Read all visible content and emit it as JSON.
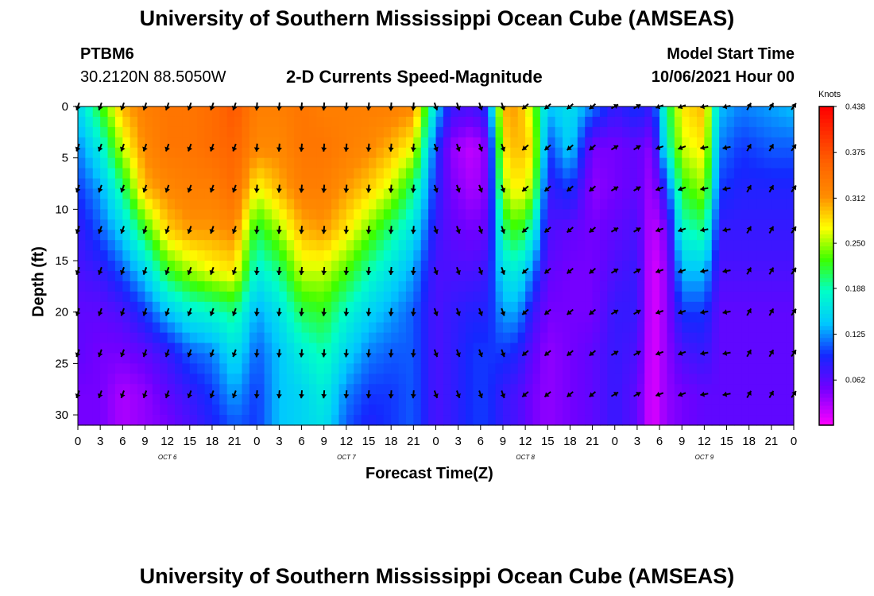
{
  "header": {
    "title": "University of Southern Mississippi Ocean Cube (AMSEAS)",
    "station": "PTBM6",
    "coords": "30.2120N  88.5050W",
    "subtitle": "2-D Currents Speed-Magnitude",
    "model_start_label": "Model Start Time",
    "model_start_value": "10/06/2021 Hour 00"
  },
  "footer": {
    "title": "University of Southern Mississippi Ocean Cube (AMSEAS)"
  },
  "chart_data": {
    "type": "heatmap",
    "ylabel": "Depth (ft)",
    "xlabel": "Forecast Time(Z)",
    "yticks": [
      0,
      5,
      10,
      15,
      20,
      25,
      30
    ],
    "ylim": [
      0,
      31
    ],
    "xlim": [
      0,
      96
    ],
    "xtick_step_hours": 3,
    "xtick_labels": [
      "0",
      "3",
      "6",
      "9",
      "12",
      "15",
      "18",
      "21",
      "0",
      "3",
      "6",
      "9",
      "12",
      "15",
      "18",
      "21",
      "0",
      "3",
      "6",
      "9",
      "12",
      "15",
      "18",
      "21",
      "0",
      "3",
      "6",
      "9",
      "12",
      "15",
      "18",
      "21",
      "0"
    ],
    "day_labels": [
      {
        "label": "OCT 6",
        "hour": 12
      },
      {
        "label": "OCT 7",
        "hour": 36
      },
      {
        "label": "OCT 8",
        "hour": 60
      },
      {
        "label": "OCT 9",
        "hour": 84
      }
    ],
    "colorbar": {
      "units": "Knots",
      "min": 0,
      "max": 0.438,
      "tick_labels": [
        "0.438",
        "0.375",
        "0.312",
        "0.250",
        "0.188",
        "0.125",
        "0.062"
      ],
      "tick_values": [
        0.438,
        0.375,
        0.312,
        0.25,
        0.188,
        0.125,
        0.062
      ]
    },
    "depths_ft": [
      0,
      4,
      8,
      12,
      16,
      20,
      24,
      28,
      31
    ],
    "speed_profiles": [
      {
        "hour": 0,
        "speed": [
          0.15,
          0.12,
          0.1,
          0.08,
          0.07,
          0.06,
          0.06,
          0.05,
          0.05
        ]
      },
      {
        "hour": 3,
        "speed": [
          0.22,
          0.17,
          0.13,
          0.11,
          0.08,
          0.06,
          0.05,
          0.05,
          0.05
        ]
      },
      {
        "hour": 6,
        "speed": [
          0.3,
          0.26,
          0.2,
          0.15,
          0.11,
          0.07,
          0.05,
          0.03,
          0.03
        ]
      },
      {
        "hour": 9,
        "speed": [
          0.33,
          0.32,
          0.3,
          0.22,
          0.15,
          0.1,
          0.06,
          0.04,
          0.04
        ]
      },
      {
        "hour": 12,
        "speed": [
          0.34,
          0.34,
          0.32,
          0.29,
          0.22,
          0.14,
          0.08,
          0.06,
          0.05
        ]
      },
      {
        "hour": 15,
        "speed": [
          0.34,
          0.34,
          0.33,
          0.31,
          0.25,
          0.17,
          0.11,
          0.08,
          0.07
        ]
      },
      {
        "hour": 18,
        "speed": [
          0.35,
          0.35,
          0.33,
          0.31,
          0.27,
          0.18,
          0.12,
          0.1,
          0.09
        ]
      },
      {
        "hour": 21,
        "speed": [
          0.37,
          0.36,
          0.35,
          0.32,
          0.28,
          0.2,
          0.16,
          0.13,
          0.11
        ]
      },
      {
        "hour": 24,
        "speed": [
          0.33,
          0.32,
          0.27,
          0.21,
          0.17,
          0.13,
          0.11,
          0.1,
          0.1
        ]
      },
      {
        "hour": 27,
        "speed": [
          0.33,
          0.32,
          0.3,
          0.25,
          0.2,
          0.16,
          0.14,
          0.14,
          0.14
        ]
      },
      {
        "hour": 30,
        "speed": [
          0.34,
          0.34,
          0.33,
          0.3,
          0.26,
          0.21,
          0.17,
          0.15,
          0.15
        ]
      },
      {
        "hour": 33,
        "speed": [
          0.33,
          0.34,
          0.33,
          0.31,
          0.26,
          0.22,
          0.19,
          0.17,
          0.16
        ]
      },
      {
        "hour": 36,
        "speed": [
          0.33,
          0.33,
          0.31,
          0.28,
          0.23,
          0.18,
          0.15,
          0.12,
          0.11
        ]
      },
      {
        "hour": 39,
        "speed": [
          0.33,
          0.32,
          0.29,
          0.24,
          0.19,
          0.15,
          0.12,
          0.1,
          0.09
        ]
      },
      {
        "hour": 42,
        "speed": [
          0.33,
          0.3,
          0.26,
          0.2,
          0.16,
          0.13,
          0.11,
          0.1,
          0.1
        ]
      },
      {
        "hour": 45,
        "speed": [
          0.32,
          0.27,
          0.2,
          0.16,
          0.13,
          0.11,
          0.11,
          0.11,
          0.11
        ]
      },
      {
        "hour": 48,
        "speed": [
          0.15,
          0.1,
          0.09,
          0.08,
          0.07,
          0.07,
          0.07,
          0.07,
          0.07
        ]
      },
      {
        "hour": 50,
        "speed": [
          0.08,
          0.04,
          0.05,
          0.06,
          0.07,
          0.08,
          0.08,
          0.08,
          0.08
        ]
      },
      {
        "hour": 53,
        "speed": [
          0.07,
          0.02,
          0.03,
          0.05,
          0.07,
          0.09,
          0.1,
          0.1,
          0.1
        ]
      },
      {
        "hour": 55,
        "speed": [
          0.1,
          0.05,
          0.05,
          0.06,
          0.08,
          0.09,
          0.1,
          0.1,
          0.1
        ]
      },
      {
        "hour": 57,
        "speed": [
          0.3,
          0.28,
          0.25,
          0.2,
          0.16,
          0.13,
          0.1,
          0.08,
          0.08
        ]
      },
      {
        "hour": 59,
        "speed": [
          0.31,
          0.3,
          0.28,
          0.23,
          0.17,
          0.13,
          0.09,
          0.07,
          0.07
        ]
      },
      {
        "hour": 61,
        "speed": [
          0.25,
          0.28,
          0.25,
          0.18,
          0.12,
          0.08,
          0.06,
          0.05,
          0.05
        ]
      },
      {
        "hour": 63,
        "speed": [
          0.14,
          0.1,
          0.08,
          0.07,
          0.06,
          0.05,
          0.04,
          0.04,
          0.04
        ]
      },
      {
        "hour": 66,
        "speed": [
          0.16,
          0.15,
          0.1,
          0.06,
          0.05,
          0.05,
          0.05,
          0.05,
          0.05
        ]
      },
      {
        "hour": 69,
        "speed": [
          0.12,
          0.05,
          0.04,
          0.05,
          0.05,
          0.05,
          0.06,
          0.06,
          0.06
        ]
      },
      {
        "hour": 72,
        "speed": [
          0.08,
          0.05,
          0.05,
          0.06,
          0.07,
          0.08,
          0.08,
          0.08,
          0.08
        ]
      },
      {
        "hour": 75,
        "speed": [
          0.1,
          0.06,
          0.06,
          0.07,
          0.08,
          0.08,
          0.07,
          0.06,
          0.06
        ]
      },
      {
        "hour": 77,
        "speed": [
          0.08,
          0.04,
          0.03,
          0.02,
          0.01,
          0.01,
          0.01,
          0.01,
          0.01
        ]
      },
      {
        "hour": 79,
        "speed": [
          0.2,
          0.18,
          0.1,
          0.05,
          0.04,
          0.04,
          0.04,
          0.04,
          0.04
        ]
      },
      {
        "hour": 81,
        "speed": [
          0.28,
          0.26,
          0.22,
          0.18,
          0.14,
          0.1,
          0.07,
          0.05,
          0.05
        ]
      },
      {
        "hour": 84,
        "speed": [
          0.3,
          0.28,
          0.25,
          0.2,
          0.14,
          0.1,
          0.08,
          0.06,
          0.06
        ]
      },
      {
        "hour": 86,
        "speed": [
          0.14,
          0.12,
          0.1,
          0.08,
          0.07,
          0.06,
          0.06,
          0.06,
          0.06
        ]
      },
      {
        "hour": 89,
        "speed": [
          0.12,
          0.1,
          0.09,
          0.08,
          0.07,
          0.06,
          0.06,
          0.06,
          0.06
        ]
      },
      {
        "hour": 93,
        "speed": [
          0.13,
          0.11,
          0.09,
          0.08,
          0.07,
          0.06,
          0.06,
          0.06,
          0.06
        ]
      },
      {
        "hour": 96,
        "speed": [
          0.14,
          0.11,
          0.09,
          0.08,
          0.07,
          0.06,
          0.06,
          0.06,
          0.06
        ]
      }
    ],
    "vector_depths_ft": [
      0,
      4,
      8,
      12,
      16,
      20,
      24,
      28
    ],
    "vector_direction_deg_by_hour": [
      {
        "hour": 0,
        "dir": 200
      },
      {
        "hour": 24,
        "dir": 185
      },
      {
        "hour": 48,
        "dir": 160
      },
      {
        "hour": 60,
        "dir": 230
      },
      {
        "hour": 72,
        "dir": 60
      },
      {
        "hour": 78,
        "dir": 250
      },
      {
        "hour": 84,
        "dir": 260
      },
      {
        "hour": 90,
        "dir": 30
      },
      {
        "hour": 96,
        "dir": 35
      }
    ]
  }
}
